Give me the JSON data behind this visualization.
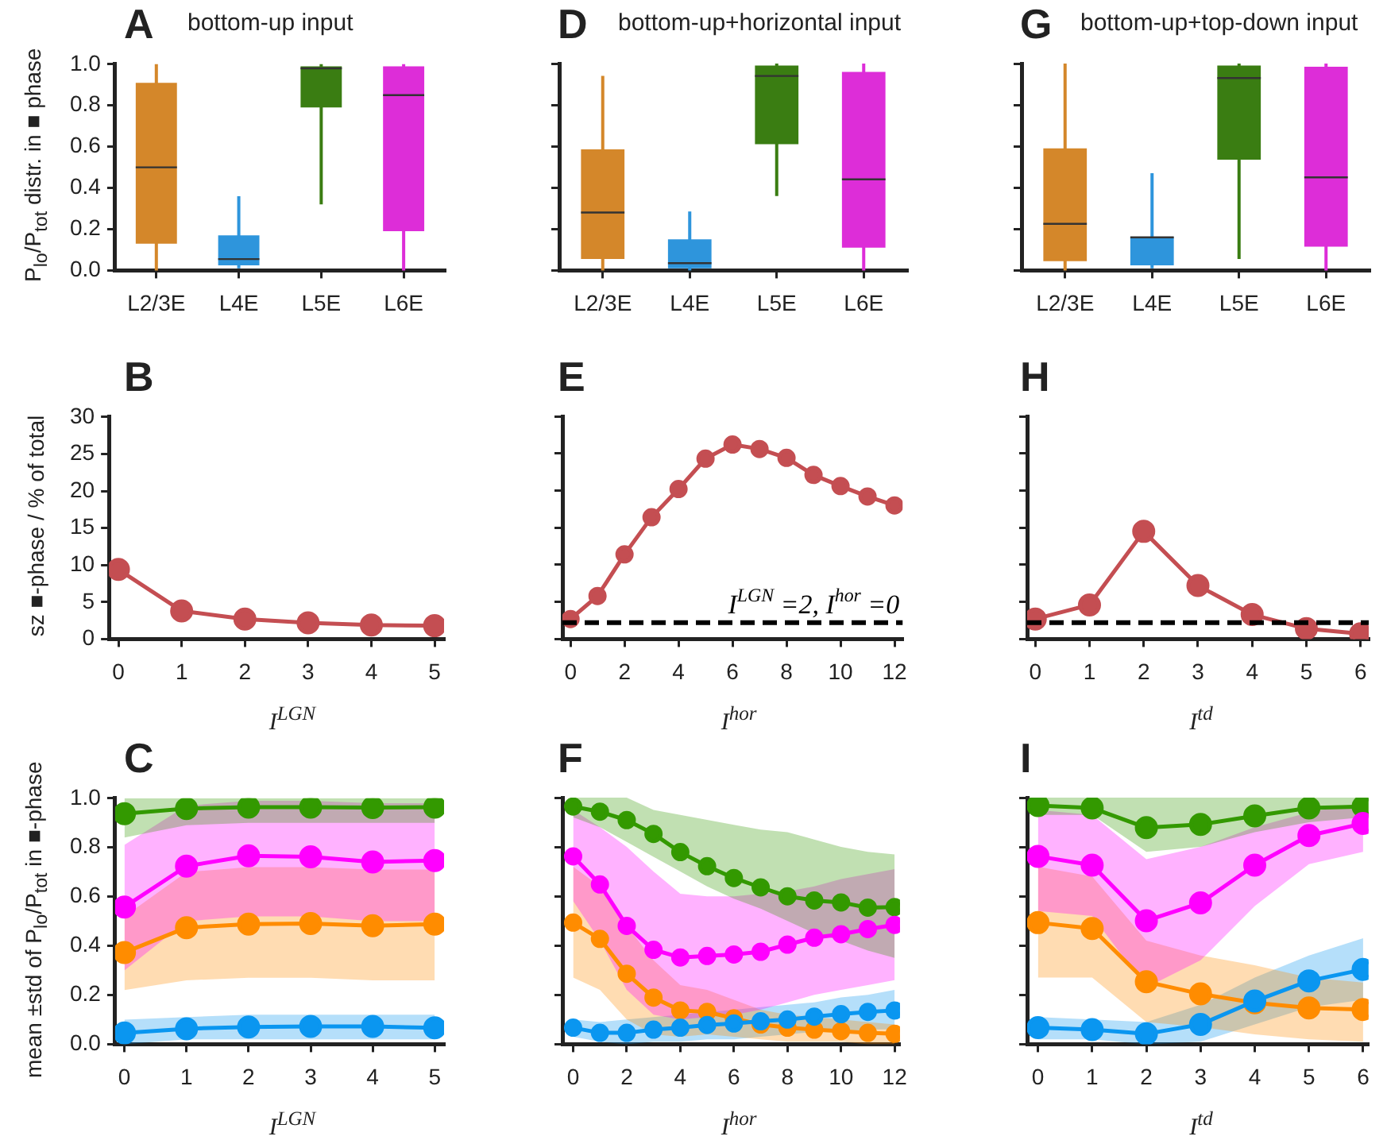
{
  "chart_data": [
    {
      "type": "box",
      "title": "A",
      "subtitle": "bottom-up input",
      "ylabel": "P$_{lo}$/P$_{tot}$ distr. in ■ phase",
      "categories": [
        "L2/3E",
        "L4E",
        "L5E",
        "L6E"
      ],
      "colors": [
        "#d4872a",
        "#2e95dc",
        "#3a7d12",
        "#dd2dd8"
      ],
      "boxes": [
        {
          "low": 0,
          "q1": 0.13,
          "median": 0.5,
          "q3": 0.91,
          "high": 1.0
        },
        {
          "low": 0.01,
          "q1": 0.025,
          "median": 0.055,
          "q3": 0.17,
          "high": 0.36
        },
        {
          "low": 0.32,
          "q1": 0.79,
          "median": 0.98,
          "q3": 0.99,
          "high": 1.0
        },
        {
          "low": 0,
          "q1": 0.19,
          "median": 0.85,
          "q3": 0.99,
          "high": 1.0
        }
      ],
      "ylim": [
        0,
        1.0
      ],
      "yticks": [
        {
          "value": 0,
          "label": "0.0"
        },
        {
          "value": 0.2,
          "label": "0.2"
        },
        {
          "value": 0.4,
          "label": "0.4"
        },
        {
          "value": 0.6,
          "label": "0.6"
        },
        {
          "value": 0.8,
          "label": "0.8"
        },
        {
          "value": 1.0,
          "label": "1.0"
        }
      ]
    },
    {
      "type": "box",
      "title": "D",
      "subtitle": "bottom-up+horizontal input",
      "categories": [
        "L2/3E",
        "L4E",
        "L5E",
        "L6E"
      ],
      "colors": [
        "#d4872a",
        "#2e95dc",
        "#3a7d12",
        "#dd2dd8"
      ],
      "boxes": [
        {
          "low": 0,
          "q1": 0.055,
          "median": 0.28,
          "q3": 0.585,
          "high": 0.94
        },
        {
          "low": 0,
          "q1": 0.01,
          "median": 0.035,
          "q3": 0.15,
          "high": 0.285
        },
        {
          "low": 0.36,
          "q1": 0.61,
          "median": 0.94,
          "q3": 0.99,
          "high": 1.0
        },
        {
          "low": 0,
          "q1": 0.11,
          "median": 0.44,
          "q3": 0.96,
          "high": 1.0
        }
      ],
      "ylim": [
        0,
        1.0
      ],
      "yticks": [
        {
          "value": 0,
          "label": null
        },
        {
          "value": 0.2,
          "label": null
        },
        {
          "value": 0.4,
          "label": null
        },
        {
          "value": 0.6,
          "label": null
        },
        {
          "value": 0.8,
          "label": null
        },
        {
          "value": 1.0,
          "label": null
        }
      ],
      "tick_labels": "x"
    },
    {
      "type": "box",
      "title": "G",
      "subtitle": "bottom-up+top-down input",
      "categories": [
        "L2/3E",
        "L4E",
        "L5E",
        "L6E"
      ],
      "colors": [
        "#d4872a",
        "#2e95dc",
        "#3a7d12",
        "#dd2dd8"
      ],
      "boxes": [
        {
          "low": 0,
          "q1": 0.045,
          "median": 0.225,
          "q3": 0.59,
          "high": 1.0
        },
        {
          "low": 0.01,
          "q1": 0.025,
          "median": 0.16,
          "q3": 0.16,
          "high": 0.47
        },
        {
          "low": 0.055,
          "q1": 0.535,
          "median": 0.93,
          "q3": 0.99,
          "high": 1.0
        },
        {
          "low": 0,
          "q1": 0.115,
          "median": 0.45,
          "q3": 0.985,
          "high": 1.0
        }
      ],
      "ylim": [
        0,
        1.0
      ],
      "yticks": [
        {
          "value": 0,
          "label": null
        },
        {
          "value": 0.2,
          "label": null
        },
        {
          "value": 0.4,
          "label": null
        },
        {
          "value": 0.6,
          "label": null
        },
        {
          "value": 0.8,
          "label": null
        },
        {
          "value": 1.0,
          "label": null
        }
      ],
      "tick_labels": "x"
    },
    {
      "type": "line",
      "title": "B",
      "ylabel": "sz ■-phase / % of total",
      "xlabel": "I$^{LGN}$",
      "x": [
        0,
        1,
        2,
        3,
        4,
        5
      ],
      "marker": "circle",
      "series": [
        {
          "color": "#c44e52",
          "values": [
            9.4,
            3.8,
            2.7,
            2.2,
            1.9,
            1.8
          ]
        }
      ],
      "xlim": [
        -0.15,
        5.15
      ],
      "xticks": [
        0,
        1,
        2,
        3,
        4,
        5
      ],
      "ylim": [
        0,
        30
      ],
      "yticks": [
        0,
        5,
        10,
        15,
        20,
        25,
        30
      ]
    },
    {
      "type": "line",
      "title": "E",
      "xlabel": "I$^{hor}$",
      "x": [
        0,
        1,
        2,
        3,
        4,
        5,
        6,
        7,
        8,
        9,
        10,
        11,
        12
      ],
      "marker": "circle",
      "series": [
        {
          "color": "#c44e52",
          "values": [
            2.7,
            5.8,
            11.4,
            16.4,
            20.2,
            24.3,
            26.2,
            25.6,
            24.4,
            22.1,
            20.6,
            19.2,
            18.0
          ]
        }
      ],
      "ref_lines": [
        {
          "axis": "y",
          "value": 2.2,
          "label": "I$^{LGN}$ =2, I$^{hor}$ =0",
          "color": "#000000",
          "line_style": "dashed"
        }
      ],
      "xlim": [
        -0.3,
        12.3
      ],
      "xticks": [
        0,
        2,
        4,
        6,
        8,
        10,
        12
      ],
      "ylim": [
        0,
        30
      ],
      "yticks": [
        0,
        5,
        10,
        15,
        20,
        25,
        30
      ],
      "tick_labels": "x"
    },
    {
      "type": "line",
      "title": "H",
      "xlabel": "I$^{td}$",
      "x": [
        0,
        1,
        2,
        3,
        4,
        5,
        6
      ],
      "marker": "circle",
      "series": [
        {
          "color": "#c44e52",
          "values": [
            2.7,
            4.6,
            14.5,
            7.2,
            3.3,
            1.4,
            0.7
          ]
        }
      ],
      "ref_lines": [
        {
          "axis": "y",
          "value": 2.2,
          "color": "#000000",
          "line_style": "dashed"
        }
      ],
      "xlim": [
        -0.15,
        6.15
      ],
      "xticks": [
        0,
        1,
        2,
        3,
        4,
        5,
        6
      ],
      "ylim": [
        0,
        30
      ],
      "yticks": [
        0,
        5,
        10,
        15,
        20,
        25,
        30
      ],
      "tick_labels": "x"
    },
    {
      "type": "line",
      "title": "C",
      "ylabel": "mean ±std of P$_{lo}$/P$_{tot}$ in ■-phase",
      "xlabel": "I$^{LGN}$",
      "x": [
        0,
        1,
        2,
        3,
        4,
        5
      ],
      "marker": "circle",
      "series": [
        {
          "color": "#339900",
          "values": [
            0.937,
            0.958,
            0.964,
            0.964,
            0.962,
            0.964
          ],
          "lower": [
            0.84,
            0.89,
            0.9,
            0.9,
            0.9,
            0.9
          ],
          "upper": [
            1.0,
            1.0,
            1.0,
            1.0,
            1.0,
            1.0
          ]
        },
        {
          "color": "#ff00ff",
          "values": [
            0.558,
            0.724,
            0.766,
            0.762,
            0.741,
            0.747
          ],
          "lower": [
            0.3,
            0.5,
            0.52,
            0.52,
            0.5,
            0.5
          ],
          "upper": [
            0.81,
            0.97,
            0.99,
            0.99,
            0.98,
            0.98
          ]
        },
        {
          "color": "#ff8c00",
          "values": [
            0.373,
            0.474,
            0.488,
            0.491,
            0.482,
            0.488
          ],
          "lower": [
            0.22,
            0.26,
            0.27,
            0.27,
            0.26,
            0.26
          ],
          "upper": [
            0.52,
            0.7,
            0.72,
            0.72,
            0.71,
            0.71
          ]
        },
        {
          "color": "#0a96f0",
          "values": [
            0.046,
            0.063,
            0.07,
            0.072,
            0.072,
            0.067
          ],
          "lower": [
            0.0,
            0.02,
            0.02,
            0.02,
            0.02,
            0.02
          ],
          "upper": [
            0.1,
            0.11,
            0.12,
            0.12,
            0.12,
            0.12
          ]
        }
      ],
      "xlim": [
        -0.15,
        5.15
      ],
      "xticks": [
        0,
        1,
        2,
        3,
        4,
        5
      ],
      "ylim": [
        0,
        1.0
      ],
      "yticks": [
        {
          "value": 0,
          "label": "0.0"
        },
        {
          "value": 0.2,
          "label": "0.2"
        },
        {
          "value": 0.4,
          "label": "0.4"
        },
        {
          "value": 0.6,
          "label": "0.6"
        },
        {
          "value": 0.8,
          "label": "0.8"
        },
        {
          "value": 1.0,
          "label": "1.0"
        }
      ]
    },
    {
      "type": "line",
      "title": "F",
      "xlabel": "I$^{hor}$",
      "x": [
        0,
        1,
        2,
        3,
        4,
        5,
        6,
        7,
        8,
        9,
        10,
        11,
        12
      ],
      "marker": "circle",
      "series": [
        {
          "color": "#339900",
          "values": [
            0.964,
            0.943,
            0.909,
            0.853,
            0.779,
            0.722,
            0.674,
            0.636,
            0.6,
            0.583,
            0.575,
            0.554,
            0.556
          ],
          "lower": [
            0.92,
            0.88,
            0.82,
            0.76,
            0.7,
            0.64,
            0.59,
            0.55,
            0.5,
            0.45,
            0.42,
            0.38,
            0.35
          ],
          "upper": [
            1.0,
            1.0,
            1.0,
            0.95,
            0.93,
            0.91,
            0.89,
            0.87,
            0.86,
            0.83,
            0.8,
            0.78,
            0.77
          ]
        },
        {
          "color": "#ff00ff",
          "values": [
            0.762,
            0.648,
            0.48,
            0.383,
            0.352,
            0.358,
            0.364,
            0.375,
            0.404,
            0.432,
            0.446,
            0.467,
            0.484
          ],
          "lower": [
            0.58,
            0.42,
            0.22,
            0.12,
            0.1,
            0.11,
            0.12,
            0.14,
            0.17,
            0.2,
            0.22,
            0.24,
            0.26
          ],
          "upper": [
            0.95,
            0.88,
            0.8,
            0.7,
            0.61,
            0.6,
            0.6,
            0.61,
            0.62,
            0.64,
            0.67,
            0.69,
            0.71
          ]
        },
        {
          "color": "#ff8c00",
          "values": [
            0.493,
            0.427,
            0.286,
            0.189,
            0.137,
            0.131,
            0.105,
            0.08,
            0.067,
            0.059,
            0.053,
            0.046,
            0.042
          ],
          "lower": [
            0.27,
            0.22,
            0.1,
            0.04,
            0.03,
            0.04,
            0.03,
            0.02,
            0.01,
            0.01,
            0.01,
            0.0,
            0.0
          ],
          "upper": [
            0.72,
            0.64,
            0.48,
            0.34,
            0.24,
            0.22,
            0.18,
            0.14,
            0.12,
            0.11,
            0.1,
            0.09,
            0.08
          ]
        },
        {
          "color": "#0a96f0",
          "values": [
            0.067,
            0.046,
            0.046,
            0.059,
            0.067,
            0.078,
            0.084,
            0.093,
            0.1,
            0.112,
            0.122,
            0.131,
            0.137
          ],
          "lower": [
            0.03,
            0.01,
            0.0,
            0.01,
            0.01,
            0.02,
            0.02,
            0.03,
            0.04,
            0.05,
            0.05,
            0.06,
            0.06
          ],
          "upper": [
            0.1,
            0.09,
            0.1,
            0.11,
            0.12,
            0.13,
            0.14,
            0.15,
            0.16,
            0.17,
            0.19,
            0.2,
            0.22
          ]
        }
      ],
      "xlim": [
        -0.4,
        12.2
      ],
      "xticks": [
        0,
        2,
        4,
        6,
        8,
        10,
        12
      ],
      "ylim": [
        0,
        1.0
      ],
      "yticks": [
        {
          "value": 0,
          "label": null
        },
        {
          "value": 0.2,
          "label": null
        },
        {
          "value": 0.4,
          "label": null
        },
        {
          "value": 0.6,
          "label": null
        },
        {
          "value": 0.8,
          "label": null
        },
        {
          "value": 1.0,
          "label": null
        }
      ],
      "tick_labels": "x"
    },
    {
      "type": "line",
      "title": "I",
      "xlabel": "I$^{td}$",
      "x": [
        0,
        1,
        2,
        3,
        4,
        5,
        6
      ],
      "marker": "circle",
      "series": [
        {
          "color": "#339900",
          "values": [
            0.968,
            0.958,
            0.878,
            0.891,
            0.926,
            0.958,
            0.964
          ],
          "lower": [
            0.93,
            0.93,
            0.78,
            0.8,
            0.86,
            0.9,
            0.92
          ],
          "upper": [
            1.0,
            1.0,
            1.0,
            1.0,
            1.0,
            1.0,
            1.0
          ]
        },
        {
          "color": "#ff00ff",
          "values": [
            0.762,
            0.726,
            0.501,
            0.573,
            0.726,
            0.846,
            0.895
          ],
          "lower": [
            0.54,
            0.52,
            0.23,
            0.34,
            0.56,
            0.73,
            0.78
          ],
          "upper": [
            0.95,
            0.93,
            0.75,
            0.8,
            0.88,
            0.94,
            0.98
          ]
        },
        {
          "color": "#ff8c00",
          "values": [
            0.493,
            0.469,
            0.253,
            0.204,
            0.168,
            0.147,
            0.141
          ],
          "lower": [
            0.27,
            0.27,
            0.09,
            0.07,
            0.04,
            0.02,
            0.01
          ],
          "upper": [
            0.72,
            0.68,
            0.42,
            0.36,
            0.32,
            0.27,
            0.25
          ]
        },
        {
          "color": "#0a96f0",
          "values": [
            0.067,
            0.059,
            0.042,
            0.08,
            0.175,
            0.257,
            0.303
          ],
          "lower": [
            0.02,
            0.02,
            0.0,
            0.01,
            0.08,
            0.15,
            0.18
          ],
          "upper": [
            0.11,
            0.1,
            0.09,
            0.16,
            0.27,
            0.36,
            0.43
          ]
        }
      ],
      "xlim": [
        -0.2,
        6.1
      ],
      "xticks": [
        0,
        1,
        2,
        3,
        4,
        5,
        6
      ],
      "ylim": [
        0,
        1.0
      ],
      "yticks": [
        {
          "value": 0,
          "label": null
        },
        {
          "value": 0.2,
          "label": null
        },
        {
          "value": 0.4,
          "label": null
        },
        {
          "value": 0.6,
          "label": null
        },
        {
          "value": 0.8,
          "label": null
        },
        {
          "value": 1.0,
          "label": null
        }
      ],
      "tick_labels": "x"
    }
  ]
}
